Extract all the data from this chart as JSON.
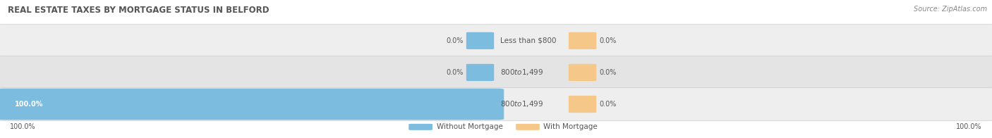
{
  "title": "REAL ESTATE TAXES BY MORTGAGE STATUS IN BELFORD",
  "source": "Source: ZipAtlas.com",
  "rows": [
    {
      "label": "Less than $800",
      "without_mortgage": 0.0,
      "with_mortgage": 0.0
    },
    {
      "label": "$800 to $1,499",
      "without_mortgage": 0.0,
      "with_mortgage": 0.0
    },
    {
      "label": "$800 to $1,499",
      "without_mortgage": 100.0,
      "with_mortgage": 0.0
    }
  ],
  "color_without": "#7bbcdf",
  "color_with": "#f5c88a",
  "bar_bg_color_odd": "#eeeeee",
  "bar_bg_color_even": "#e4e4e4",
  "legend_without": "Without Mortgage",
  "legend_with": "With Mortgage",
  "bg_color": "#ffffff",
  "title_color": "#555555",
  "source_color": "#888888",
  "label_color": "#555555",
  "pct_color": "#555555",
  "figsize": [
    14.06,
    1.96
  ],
  "dpi": 100
}
